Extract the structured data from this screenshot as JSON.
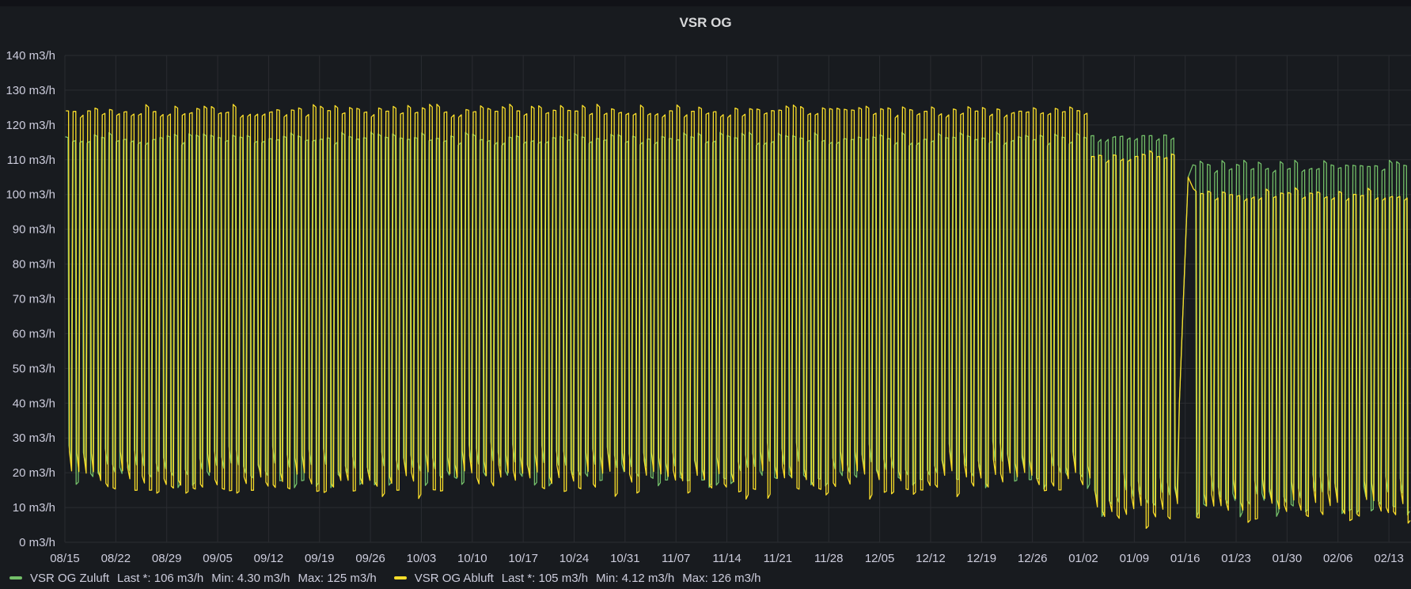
{
  "panel": {
    "title": "VSR OG"
  },
  "colors": {
    "background": "#181b1f",
    "grid": "#2c2e33",
    "text": "#ccccdc",
    "zuluft": "#73bf69",
    "abluft": "#fade2a"
  },
  "legend": [
    {
      "name": "VSR OG Zuluft",
      "color": "#73bf69",
      "last_label": "Last *:",
      "last": "106 m3/h",
      "min_label": "Min:",
      "min": "4.30 m3/h",
      "max_label": "Max:",
      "max": "125 m3/h"
    },
    {
      "name": "VSR OG Abluft",
      "color": "#fade2a",
      "last_label": "Last *:",
      "last": "105 m3/h",
      "min_label": "Min:",
      "min": "4.12 m3/h",
      "max_label": "Max:",
      "max": "126 m3/h"
    }
  ],
  "chart_data": {
    "type": "line",
    "title": "VSR OG",
    "unit": "m3/h",
    "ylim": [
      0,
      140
    ],
    "y_ticks": [
      0,
      10,
      20,
      30,
      40,
      50,
      60,
      70,
      80,
      90,
      100,
      110,
      120,
      130,
      140
    ],
    "y_tick_labels": [
      "0 m3/h",
      "10 m3/h",
      "20 m3/h",
      "30 m3/h",
      "40 m3/h",
      "50 m3/h",
      "60 m3/h",
      "70 m3/h",
      "80 m3/h",
      "90 m3/h",
      "100 m3/h",
      "110 m3/h",
      "120 m3/h",
      "130 m3/h",
      "140 m3/h"
    ],
    "x_tick_labels": [
      "08/15",
      "08/22",
      "08/29",
      "09/05",
      "09/12",
      "09/19",
      "09/26",
      "10/03",
      "10/10",
      "10/17",
      "10/24",
      "10/31",
      "11/07",
      "11/14",
      "11/21",
      "11/28",
      "12/05",
      "12/12",
      "12/19",
      "12/26",
      "01/02",
      "01/09",
      "01/16",
      "01/23",
      "01/30",
      "02/06",
      "02/13"
    ],
    "x_range_days": [
      0,
      184.5
    ],
    "grid": true,
    "legend_position": "bottom-left",
    "series": [
      {
        "name": "VSR OG Zuluft",
        "color": "#73bf69",
        "segments": [
          {
            "from_day": 0,
            "to_day": 140.5,
            "high": 116,
            "low": 18
          },
          {
            "from_day": 140.5,
            "to_day": 152.5,
            "high": 117,
            "low": 10
          },
          {
            "from_day": 155,
            "to_day": 184.5,
            "high": 108,
            "low": 10
          }
        ]
      },
      {
        "name": "VSR OG Abluft",
        "color": "#fade2a",
        "segments": [
          {
            "from_day": 0,
            "to_day": 140.5,
            "high": 124,
            "low": 15
          },
          {
            "from_day": 140.5,
            "to_day": 152.5,
            "high": 111,
            "low": 6
          },
          {
            "from_day": 155,
            "to_day": 184.5,
            "high": 100,
            "low": 7
          }
        ]
      }
    ]
  }
}
